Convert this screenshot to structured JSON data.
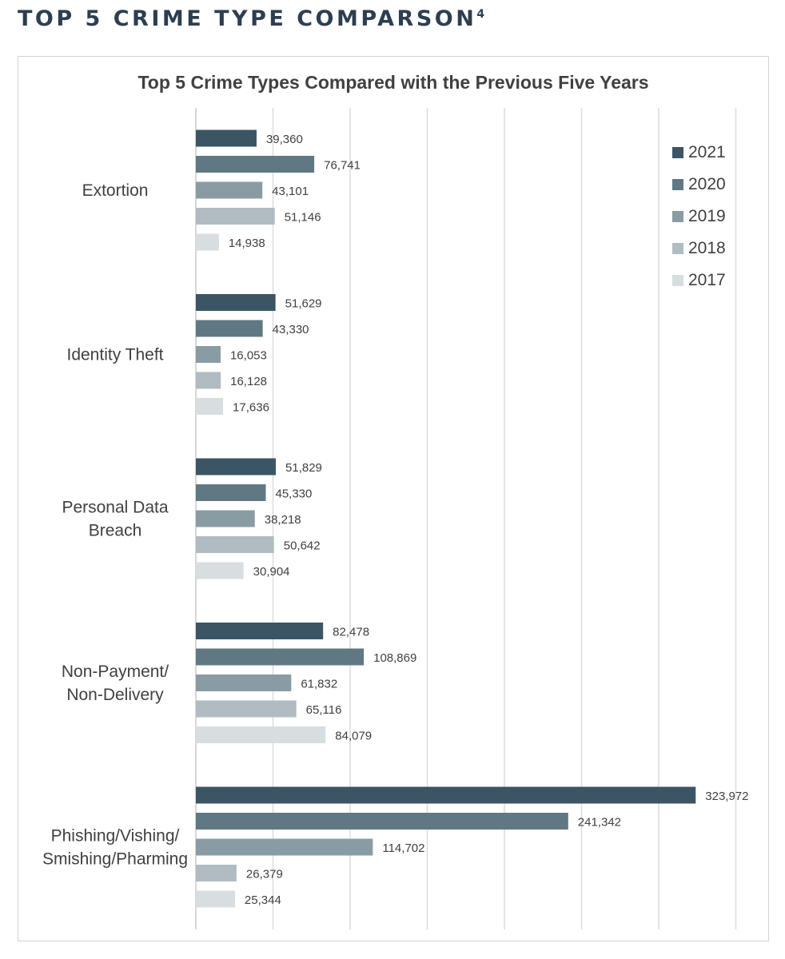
{
  "page": {
    "heading": "TOP 5 CRIME TYPE COMPARSON",
    "heading_footnote": "4"
  },
  "chart_data": {
    "type": "bar",
    "orientation": "horizontal",
    "title": "Top 5 Crime Types Compared with the Previous Five Years",
    "categories": [
      [
        "Extortion"
      ],
      [
        "Identity Theft"
      ],
      [
        "Personal Data",
        "Breach"
      ],
      [
        "Non-Payment/",
        "Non-Delivery"
      ],
      [
        "Phishing/Vishing/",
        "Smishing/Pharming"
      ]
    ],
    "series": [
      {
        "name": "2021",
        "color": "#3b5564",
        "values": [
          39360,
          51629,
          51829,
          82478,
          323972
        ]
      },
      {
        "name": "2020",
        "color": "#607883",
        "values": [
          76741,
          43330,
          45330,
          108869,
          241342
        ]
      },
      {
        "name": "2019",
        "color": "#8a9ca3",
        "values": [
          43101,
          16053,
          38218,
          61832,
          114702
        ]
      },
      {
        "name": "2018",
        "color": "#b0bcc1",
        "values": [
          51146,
          16128,
          50642,
          65116,
          26379
        ]
      },
      {
        "name": "2017",
        "color": "#d8dde0",
        "values": [
          14938,
          17636,
          30904,
          84079,
          25344
        ]
      }
    ],
    "value_labels": [
      [
        "39,360",
        "76,741",
        "43,101",
        "51,146",
        "14,938"
      ],
      [
        "51,629",
        "43,330",
        "16,053",
        "16,128",
        "17,636"
      ],
      [
        "51,829",
        "45,330",
        "38,218",
        "50,642",
        "30,904"
      ],
      [
        "82,478",
        "108,869",
        "61,832",
        "65,116",
        "84,079"
      ],
      [
        "323,972",
        "241,342",
        "114,702",
        "26,379",
        "25,344"
      ]
    ],
    "xlim": [
      0,
      350000
    ],
    "x_gridline_step": 50000,
    "grid": true,
    "x_tick_labels_shown": false,
    "legend_position": "top-right"
  }
}
